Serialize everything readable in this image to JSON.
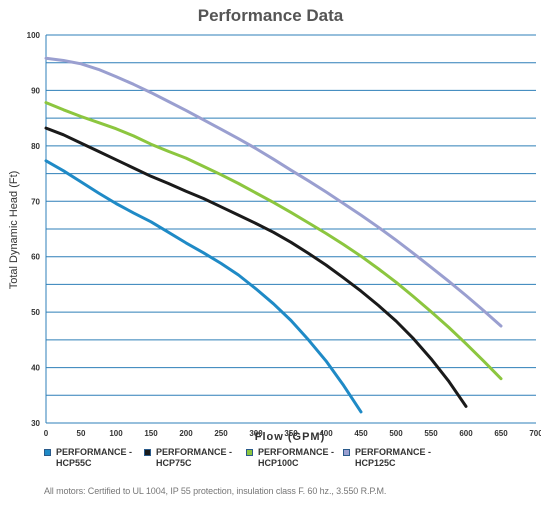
{
  "page": {
    "footnote": "All motors: Certified to UL 1004, IP 55 protection, insulation class F. 60 hz., 3.550 R.P.M."
  },
  "chart_data": {
    "type": "line",
    "title": "Performance Data",
    "xlabel": "Flow (GPM)",
    "ylabel": "Total Dynamic Head (Ft)",
    "xlim": [
      0,
      700
    ],
    "ylim": [
      30,
      100
    ],
    "xticks": [
      "0",
      "50",
      "100",
      "150",
      "200",
      "250",
      "300",
      "350",
      "400",
      "450",
      "500",
      "550",
      "600",
      "650",
      "700"
    ],
    "yticks": [
      "30",
      "40",
      "50",
      "60",
      "70",
      "80",
      "90",
      "100"
    ],
    "grid": "horizontal every 5",
    "legend_position": "bottom",
    "series": [
      {
        "name": "PERFORMANCE - HCP55C",
        "color": "#1f8ac6",
        "x": [
          0,
          25,
          50,
          75,
          100,
          125,
          150,
          175,
          200,
          225,
          250,
          275,
          300,
          325,
          350,
          375,
          400,
          425,
          450
        ],
        "y": [
          77.3,
          75.5,
          73.5,
          71.5,
          69.6,
          67.9,
          66.3,
          64.4,
          62.5,
          60.7,
          58.8,
          56.7,
          54.2,
          51.5,
          48.5,
          45.0,
          41.2,
          36.8,
          32.0
        ]
      },
      {
        "name": "PERFORMANCE - HCP75C",
        "color": "#1a1a1a",
        "x": [
          0,
          25,
          50,
          75,
          100,
          125,
          150,
          175,
          200,
          225,
          250,
          275,
          300,
          325,
          350,
          375,
          400,
          425,
          450,
          475,
          500,
          525,
          550,
          575,
          600
        ],
        "y": [
          83.2,
          82.0,
          80.5,
          79.0,
          77.5,
          76.0,
          74.5,
          73.2,
          71.8,
          70.5,
          69.0,
          67.5,
          66.0,
          64.4,
          62.6,
          60.6,
          58.5,
          56.2,
          53.8,
          51.2,
          48.4,
          45.2,
          41.6,
          37.6,
          33.0
        ]
      },
      {
        "name": "PERFORMANCE - HCP100C",
        "color": "#8cc63f",
        "x": [
          0,
          25,
          50,
          75,
          100,
          125,
          150,
          175,
          200,
          225,
          250,
          275,
          300,
          325,
          350,
          375,
          400,
          425,
          450,
          475,
          500,
          525,
          550,
          575,
          600,
          625,
          650
        ],
        "y": [
          87.8,
          86.5,
          85.3,
          84.2,
          83.1,
          81.8,
          80.3,
          79.0,
          77.8,
          76.3,
          74.8,
          73.2,
          71.5,
          69.8,
          68.0,
          66.1,
          64.2,
          62.2,
          60.1,
          57.8,
          55.4,
          52.8,
          50.1,
          47.3,
          44.3,
          41.2,
          38.0
        ]
      },
      {
        "name": "PERFORMANCE - HCP125C",
        "color": "#9a9fd0",
        "x": [
          0,
          25,
          50,
          75,
          100,
          125,
          150,
          175,
          200,
          225,
          250,
          275,
          300,
          325,
          350,
          375,
          400,
          425,
          450,
          475,
          500,
          525,
          550,
          575,
          600,
          625,
          650
        ],
        "y": [
          95.8,
          95.4,
          94.8,
          93.8,
          92.5,
          91.1,
          89.6,
          88.0,
          86.4,
          84.7,
          83.0,
          81.3,
          79.5,
          77.6,
          75.6,
          73.7,
          71.7,
          69.6,
          67.5,
          65.3,
          63.0,
          60.6,
          58.1,
          55.6,
          53.0,
          50.3,
          47.5
        ]
      }
    ]
  }
}
